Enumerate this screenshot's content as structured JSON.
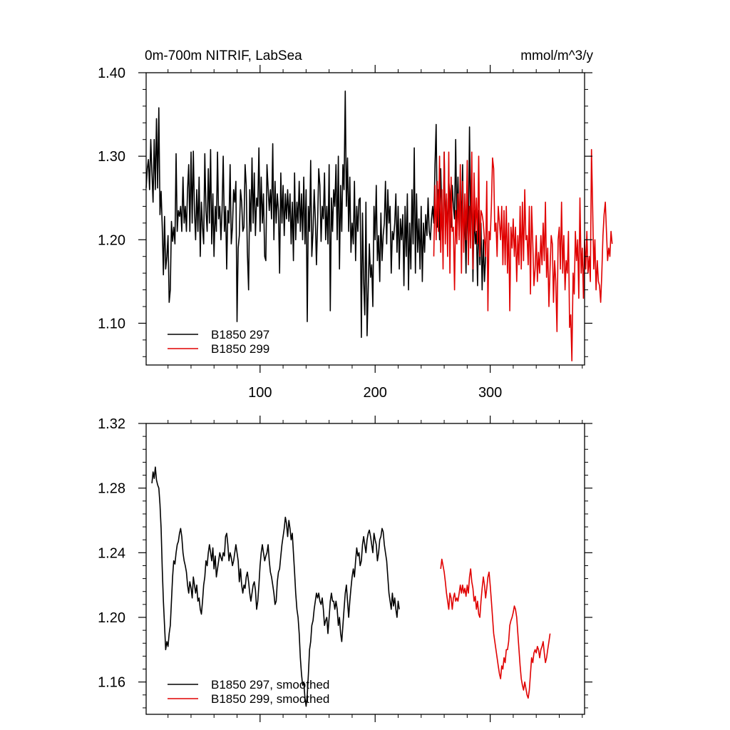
{
  "chart_data": [
    {
      "type": "line",
      "title": "0m-700m NITRIF, LabSea",
      "units": "mmol/m^3/y",
      "xlim": [
        1,
        382
      ],
      "ylim": [
        1.05,
        1.4
      ],
      "x_ticks": [
        100,
        200,
        300
      ],
      "x_tick_labels": [
        "100",
        "200",
        "300"
      ],
      "y_ticks": [
        1.1,
        1.2,
        1.3,
        1.4
      ],
      "y_tick_labels": [
        "1.10",
        "1.20",
        "1.30",
        "1.40"
      ],
      "legend_position": "bottom-left",
      "series": [
        {
          "name": "B1850 297",
          "color": "#000000",
          "x_start": 1,
          "values": [
            1.262,
            1.285,
            1.296,
            1.26,
            1.32,
            1.28,
            1.245,
            1.32,
            1.26,
            1.345,
            1.262,
            1.358,
            1.23,
            1.258,
            1.215,
            1.158,
            1.228,
            1.165,
            1.18,
            1.205,
            1.125,
            1.14,
            1.222,
            1.198,
            1.215,
            1.195,
            1.303,
            1.21,
            1.235,
            1.228,
            1.24,
            1.21,
            1.275,
            1.22,
            1.24,
            1.21,
            1.26,
            1.29,
            1.21,
            1.305,
            1.22,
            1.306,
            1.235,
            1.2,
            1.26,
            1.21,
            1.275,
            1.18,
            1.245,
            1.215,
            1.195,
            1.303,
            1.235,
            1.21,
            1.285,
            1.22,
            1.308,
            1.195,
            1.255,
            1.18,
            1.24,
            1.21,
            1.305,
            1.225,
            1.24,
            1.2,
            1.236,
            1.3,
            1.21,
            1.24,
            1.165,
            1.235,
            1.22,
            1.29,
            1.195,
            1.215,
            1.26,
            1.245,
            1.27,
            1.102,
            1.19,
            1.205,
            1.26,
            1.245,
            1.21,
            1.215,
            1.29,
            1.265,
            1.185,
            1.14,
            1.26,
            1.21,
            1.298,
            1.22,
            1.28,
            1.205,
            1.25,
            1.24,
            1.31,
            1.21,
            1.275,
            1.22,
            1.255,
            1.18,
            1.175,
            1.29,
            1.262,
            1.235,
            1.26,
            1.225,
            1.315,
            1.2,
            1.27,
            1.22,
            1.255,
            1.235,
            1.16,
            1.28,
            1.22,
            1.265,
            1.205,
            1.255,
            1.225,
            1.26,
            1.222,
            1.255,
            1.195,
            1.245,
            1.175,
            1.28,
            1.2,
            1.245,
            1.22,
            1.27,
            1.21,
            1.255,
            1.2,
            1.275,
            1.195,
            1.26,
            1.102,
            1.24,
            1.21,
            1.295,
            1.18,
            1.21,
            1.26,
            1.225,
            1.17,
            1.22,
            1.285,
            1.265,
            1.198,
            1.24,
            1.225,
            1.28,
            1.2,
            1.24,
            1.195,
            1.29,
            1.115,
            1.25,
            1.21,
            1.26,
            1.24,
            1.29,
            1.2,
            1.3,
            1.165,
            1.265,
            1.21,
            1.29,
            1.26,
            1.378,
            1.24,
            1.298,
            1.21,
            1.275,
            1.185,
            1.22,
            1.195,
            1.27,
            1.175,
            1.24,
            1.21,
            1.248,
            1.25,
            1.083,
            1.232,
            1.15,
            1.11,
            1.245,
            1.085,
            1.14,
            1.195,
            1.155,
            1.17,
            1.12,
            1.24,
            1.2,
            1.265,
            1.175,
            1.205,
            1.15,
            1.232,
            1.175,
            1.205,
            1.22,
            1.27,
            1.195,
            1.26,
            1.22,
            1.24,
            1.16,
            1.21,
            1.2,
            1.22,
            1.255,
            1.185,
            1.24,
            1.165,
            1.225,
            1.2,
            1.23,
            1.145,
            1.24,
            1.18,
            1.255,
            1.14,
            1.22,
            1.165,
            1.26,
            1.195,
            1.31,
            1.16,
            1.255,
            1.185,
            1.225,
            1.165,
            1.24,
            1.15,
            1.22,
            1.185,
            1.23,
            1.205,
            1.25,
            1.21,
            1.2,
            1.225,
            1.24,
            1.22,
            1.29,
            1.338,
            1.215,
            1.26,
            1.2,
            1.285,
            1.23,
            1.195,
            1.305,
            1.215,
            1.25,
            1.205,
            1.27,
            1.255,
            1.215,
            1.265,
            1.24,
            1.225,
            1.32,
            1.22,
            1.275,
            1.205,
            1.26,
            1.22,
            1.29,
            1.195,
            1.232,
            1.16,
            1.255,
            1.2,
            1.335,
            1.22,
            1.27,
            1.15,
            1.235,
            1.195,
            1.21,
            1.145,
            1.235,
            1.17,
            1.22,
            1.14,
            1.2,
            1.15,
            1.18
          ]
        },
        {
          "name": "B1850 299",
          "color": "#e00000",
          "x_start": 251,
          "values": [
            1.18,
            1.265,
            1.2,
            1.27,
            1.21,
            1.3,
            1.185,
            1.26,
            1.165,
            1.305,
            1.195,
            1.255,
            1.18,
            1.305,
            1.16,
            1.275,
            1.21,
            1.215,
            1.14,
            1.235,
            1.195,
            1.255,
            1.2,
            1.29,
            1.16,
            1.27,
            1.185,
            1.255,
            1.2,
            1.295,
            1.17,
            1.24,
            1.19,
            1.305,
            1.165,
            1.28,
            1.21,
            1.25,
            1.195,
            1.3,
            1.18,
            1.235,
            1.23,
            1.22,
            1.2,
            1.18,
            1.27,
            1.115,
            1.21,
            1.2,
            1.24,
            1.298,
            1.285,
            1.21,
            1.22,
            1.18,
            1.24,
            1.22,
            1.2,
            1.24,
            1.17,
            1.235,
            1.17,
            1.24,
            1.16,
            1.22,
            1.115,
            1.215,
            1.19,
            1.225,
            1.18,
            1.215,
            1.15,
            1.205,
            1.17,
            1.24,
            1.165,
            1.245,
            1.175,
            1.26,
            1.2,
            1.205,
            1.17,
            1.24,
            1.135,
            1.24,
            1.195,
            1.145,
            1.165,
            1.205,
            1.15,
            1.185,
            1.16,
            1.205,
            1.17,
            1.22,
            1.175,
            1.245,
            1.155,
            1.19,
            1.12,
            1.165,
            1.205,
            1.195,
            1.125,
            1.175,
            1.15,
            1.09,
            1.2,
            1.215,
            1.165,
            1.245,
            1.16,
            1.205,
            1.14,
            1.175,
            1.16,
            1.21,
            1.095,
            1.11,
            1.055,
            1.16,
            1.135,
            1.21,
            1.175,
            1.2,
            1.13,
            1.25,
            1.16,
            1.19,
            1.13,
            1.2,
            1.165,
            1.21,
            1.16,
            1.18,
            1.15,
            1.308,
            1.24,
            1.165,
            1.2,
            1.14,
            1.175,
            1.15,
            1.145,
            1.125,
            1.16,
            1.205,
            1.23,
            1.245,
            1.21,
            1.175,
            1.19,
            1.18,
            1.21,
            1.195
          ]
        }
      ]
    },
    {
      "type": "line",
      "title": "",
      "xlim": [
        1,
        382
      ],
      "ylim": [
        1.14,
        1.32
      ],
      "x_ticks": [
        100,
        200,
        300
      ],
      "x_tick_labels": [],
      "y_ticks": [
        1.16,
        1.2,
        1.24,
        1.28,
        1.32
      ],
      "y_tick_labels": [
        "1.16",
        "1.20",
        "1.24",
        "1.28",
        "1.32"
      ],
      "legend_position": "bottom-left",
      "series": [
        {
          "name": "B1850 297, smoothed",
          "color": "#000000",
          "x_start": 6,
          "values": [
            1.283,
            1.29,
            1.286,
            1.293,
            1.285,
            1.282,
            1.28,
            1.27,
            1.255,
            1.23,
            1.21,
            1.195,
            1.18,
            1.185,
            1.182,
            1.19,
            1.195,
            1.21,
            1.225,
            1.235,
            1.233,
            1.24,
            1.245,
            1.247,
            1.252,
            1.255,
            1.25,
            1.24,
            1.235,
            1.232,
            1.228,
            1.22,
            1.215,
            1.222,
            1.218,
            1.212,
            1.225,
            1.22,
            1.215,
            1.22,
            1.21,
            1.212,
            1.205,
            1.202,
            1.21,
            1.22,
            1.225,
            1.235,
            1.232,
            1.24,
            1.245,
            1.24,
            1.235,
            1.243,
            1.23,
            1.238,
            1.225,
            1.23,
            1.235,
            1.24,
            1.237,
            1.235,
            1.24,
            1.238,
            1.25,
            1.252,
            1.245,
            1.235,
            1.24,
            1.237,
            1.232,
            1.235,
            1.24,
            1.245,
            1.24,
            1.235,
            1.222,
            1.23,
            1.22,
            1.215,
            1.22,
            1.218,
            1.225,
            1.228,
            1.222,
            1.215,
            1.21,
            1.215,
            1.22,
            1.222,
            1.217,
            1.205,
            1.21,
            1.22,
            1.232,
            1.24,
            1.245,
            1.24,
            1.235,
            1.238,
            1.24,
            1.245,
            1.235,
            1.228,
            1.225,
            1.22,
            1.215,
            1.208,
            1.21,
            1.222,
            1.228,
            1.23,
            1.238,
            1.245,
            1.25,
            1.255,
            1.262,
            1.258,
            1.25,
            1.26,
            1.255,
            1.248,
            1.252,
            1.24,
            1.228,
            1.215,
            1.205,
            1.2,
            1.19,
            1.175,
            1.165,
            1.158,
            1.16,
            1.15,
            1.145,
            1.152,
            1.165,
            1.18,
            1.185,
            1.195,
            1.198,
            1.205,
            1.21,
            1.215,
            1.212,
            1.215,
            1.21,
            1.208,
            1.212,
            1.205,
            1.195,
            1.198,
            1.2,
            1.19,
            1.2,
            1.21,
            1.215,
            1.21,
            1.21,
            1.205,
            1.21,
            1.205,
            1.195,
            1.2,
            1.19,
            1.185,
            1.195,
            1.205,
            1.215,
            1.22,
            1.21,
            1.2,
            1.21,
            1.218,
            1.225,
            1.23,
            1.225,
            1.235,
            1.243,
            1.238,
            1.24,
            1.232,
            1.235,
            1.245,
            1.25,
            1.245,
            1.24,
            1.248,
            1.252,
            1.254,
            1.25,
            1.245,
            1.24,
            1.252,
            1.248,
            1.245,
            1.235,
            1.24,
            1.248,
            1.25,
            1.255,
            1.253,
            1.245,
            1.24,
            1.235,
            1.225,
            1.215,
            1.21,
            1.205,
            1.215,
            1.207,
            1.212,
            1.205,
            1.2,
            1.21,
            1.205
          ]
        },
        {
          "name": "B1850 299, smoothed",
          "color": "#e00000",
          "x_start": 257,
          "values": [
            1.23,
            1.236,
            1.232,
            1.228,
            1.222,
            1.215,
            1.21,
            1.205,
            1.215,
            1.212,
            1.205,
            1.212,
            1.215,
            1.21,
            1.212,
            1.21,
            1.215,
            1.22,
            1.215,
            1.22,
            1.215,
            1.218,
            1.213,
            1.22,
            1.215,
            1.225,
            1.23,
            1.222,
            1.218,
            1.21,
            1.213,
            1.205,
            1.21,
            1.202,
            1.2,
            1.21,
            1.218,
            1.225,
            1.22,
            1.212,
            1.218,
            1.225,
            1.228,
            1.22,
            1.21,
            1.2,
            1.19,
            1.185,
            1.18,
            1.175,
            1.17,
            1.165,
            1.162,
            1.17,
            1.168,
            1.175,
            1.172,
            1.18,
            1.18,
            1.185,
            1.195,
            1.198,
            1.2,
            1.203,
            1.207,
            1.205,
            1.2,
            1.19,
            1.18,
            1.17,
            1.162,
            1.158,
            1.155,
            1.16,
            1.156,
            1.152,
            1.15,
            1.155,
            1.165,
            1.175,
            1.172,
            1.178,
            1.18,
            1.178,
            1.182,
            1.18,
            1.175,
            1.18,
            1.182,
            1.185,
            1.178,
            1.172,
            1.175,
            1.18,
            1.185,
            1.19
          ]
        }
      ]
    }
  ]
}
